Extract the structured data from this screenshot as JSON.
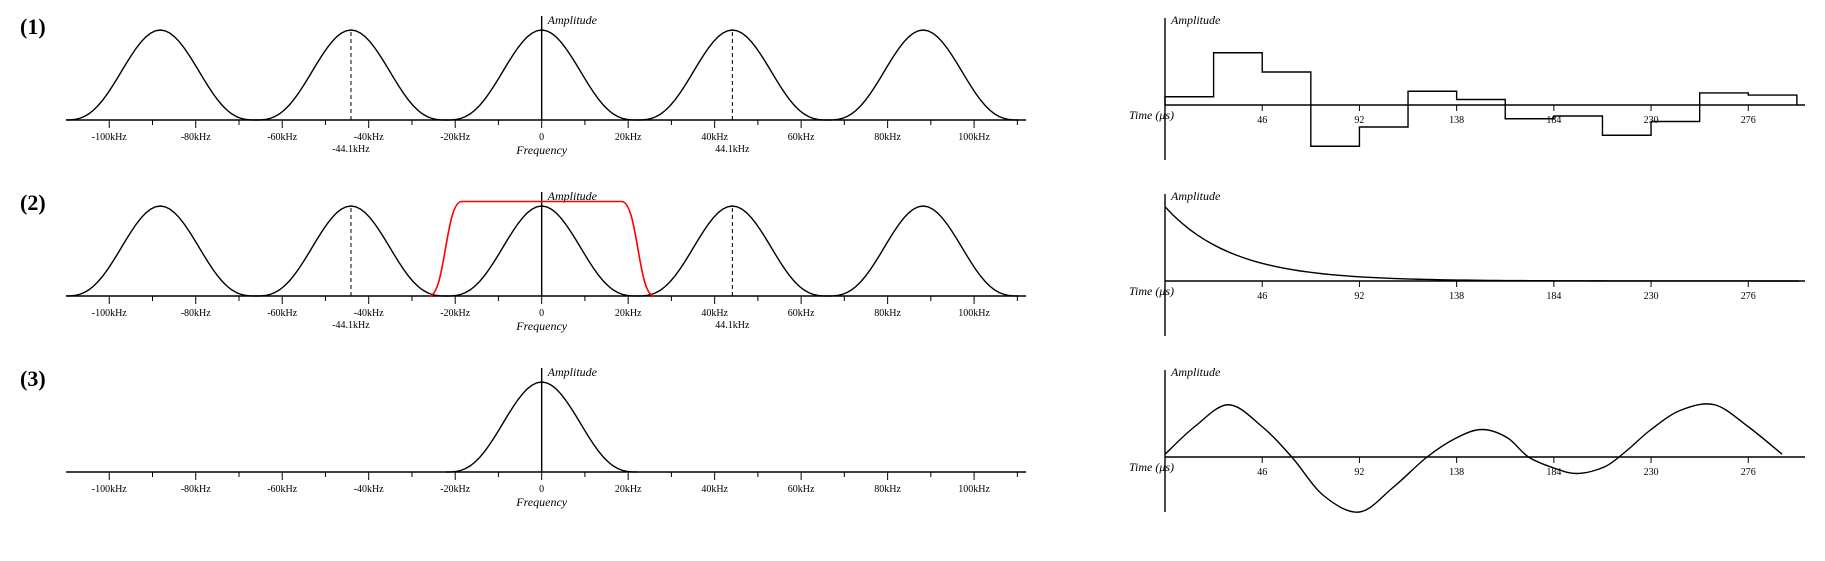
{
  "figure": {
    "background_color": "#ffffff",
    "stroke_color": "#000000",
    "highlight_color": "#ff0000",
    "stroke_width": 1.4,
    "font_family": "Times New Roman",
    "axis_label_fontsize": 12,
    "tick_fontsize": 10,
    "row_label_fontsize": 22,
    "row_labels": [
      "(1)",
      "(2)",
      "(3)"
    ]
  },
  "freq_axis": {
    "label": "Frequency",
    "ylabel": "Amplitude",
    "xmin": -110,
    "xmax": 112,
    "ticks": [
      -100,
      -90,
      -80,
      -70,
      -60,
      -50,
      -40,
      -30,
      -20,
      -10,
      0,
      10,
      20,
      30,
      40,
      50,
      60,
      70,
      80,
      90,
      100,
      110
    ],
    "major_ticks": [
      -100,
      -80,
      -60,
      -40,
      -20,
      0,
      20,
      40,
      60,
      80,
      100
    ],
    "tick_labels": {
      "-100": "-100kHz",
      "-80": "-80kHz",
      "-60": "-60kHz",
      "-40": "-40kHz",
      "-20": "-20kHz",
      "0": "0",
      "20": "20kHz",
      "40": "40kHz",
      "60": "60kHz",
      "80": "80kHz",
      "100": "100kHz"
    },
    "dashed_markers": [
      -44.1,
      44.1
    ],
    "dashed_labels": {
      "-44.1": "-44.1kHz",
      "44.1": "44.1kHz"
    }
  },
  "freq_rows": [
    {
      "lobes": [
        -88.2,
        -44.1,
        0,
        44.1,
        88.2
      ],
      "lobe_half_width": 22.05,
      "lobe_height": 1.0,
      "show_dashed": true,
      "show_filter": false,
      "filter": null
    },
    {
      "lobes": [
        -88.2,
        -44.1,
        0,
        44.1,
        88.2
      ],
      "lobe_half_width": 22.05,
      "lobe_height": 1.0,
      "show_dashed": true,
      "show_filter": true,
      "filter": {
        "pass_start": -18.5,
        "pass_end": 18.5,
        "stop_low": -26,
        "stop_high": 26,
        "height": 1.05,
        "color": "#ff0000"
      }
    },
    {
      "lobes": [
        0
      ],
      "lobe_half_width": 22.05,
      "lobe_height": 1.0,
      "show_dashed": false,
      "show_filter": false,
      "filter": null
    }
  ],
  "time_axis": {
    "label": "Time (μs)",
    "ylabel": "Amplitude",
    "xmin": -6,
    "xmax": 300,
    "tick_step": 46,
    "ticks": [
      46,
      92,
      138,
      184,
      230,
      276
    ]
  },
  "time_rows": [
    {
      "type": "step",
      "step_width": 23,
      "values": [
        0.15,
        0.95,
        0.6,
        -0.75,
        -0.4,
        0.25,
        0.1,
        -0.25,
        -0.2,
        -0.55,
        -0.3,
        0.22,
        0.18
      ]
    },
    {
      "type": "decay",
      "tau": 32,
      "y0": 1.0
    },
    {
      "type": "smooth",
      "points": [
        [
          0,
          0.05
        ],
        [
          14,
          0.55
        ],
        [
          30,
          0.95
        ],
        [
          46,
          0.55
        ],
        [
          60,
          0.0
        ],
        [
          75,
          -0.7
        ],
        [
          92,
          -1.0
        ],
        [
          108,
          -0.55
        ],
        [
          124,
          0.0
        ],
        [
          138,
          0.35
        ],
        [
          150,
          0.5
        ],
        [
          162,
          0.35
        ],
        [
          172,
          0.0
        ],
        [
          184,
          -0.2
        ],
        [
          195,
          -0.3
        ],
        [
          208,
          -0.18
        ],
        [
          218,
          0.1
        ],
        [
          230,
          0.5
        ],
        [
          244,
          0.85
        ],
        [
          260,
          0.95
        ],
        [
          276,
          0.55
        ],
        [
          292,
          0.05
        ]
      ]
    }
  ]
}
